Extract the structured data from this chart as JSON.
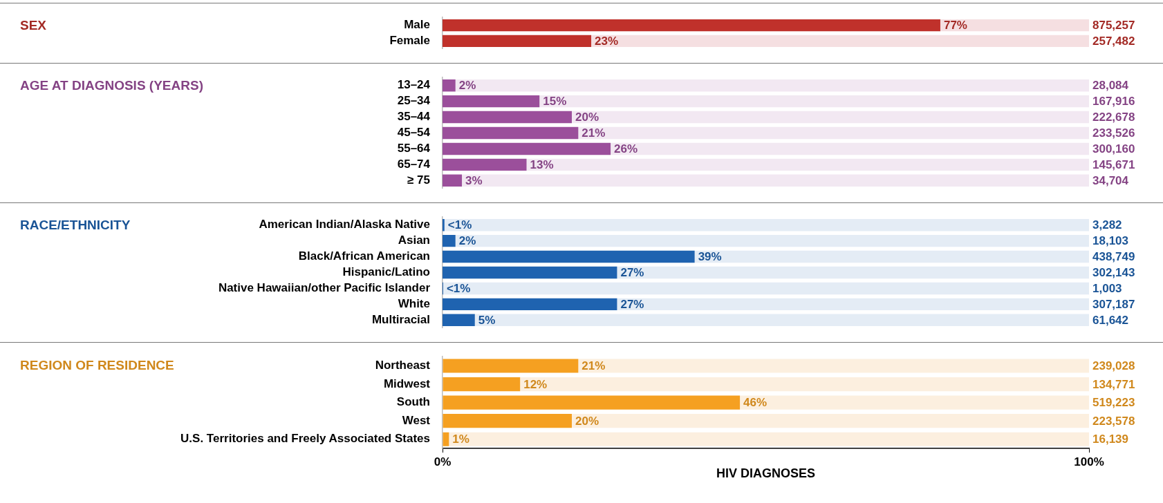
{
  "chart_data": [
    {
      "type": "bar",
      "orientation": "horizontal",
      "stacked": true,
      "ylabel": "SEX",
      "categories": [
        "Male",
        "Female"
      ],
      "xlim": [
        0,
        100
      ],
      "tick_labels": "y",
      "series": [
        {
          "color": "#c0312b",
          "values": [
            77,
            23
          ],
          "value_labels": [
            "77%",
            "23%"
          ]
        },
        {
          "color": "#f5dfe1",
          "values": [
            23,
            77
          ]
        }
      ],
      "annotations": [
        "875,257",
        "257,482"
      ]
    },
    {
      "type": "bar",
      "orientation": "horizontal",
      "stacked": true,
      "ylabel": "AGE AT DIAGNOSIS (YEARS)",
      "categories": [
        "13–24",
        "25–34",
        "35–44",
        "45–54",
        "55–64",
        "65–74",
        "≥ 75"
      ],
      "xlim": [
        0,
        100
      ],
      "tick_labels": "y",
      "series": [
        {
          "color": "#9b4f9b",
          "values": [
            2,
            15,
            20,
            21,
            26,
            13,
            3
          ],
          "value_labels": [
            "2%",
            "15%",
            "20%",
            "21%",
            "26%",
            "13%",
            "3%"
          ]
        },
        {
          "color": "#f2e8f2",
          "values": [
            98,
            85,
            80,
            79,
            74,
            87,
            97
          ]
        }
      ],
      "annotations": [
        "28,084",
        "167,916",
        "222,678",
        "233,526",
        "300,160",
        "145,671",
        "34,704"
      ]
    },
    {
      "type": "bar",
      "orientation": "horizontal",
      "stacked": true,
      "ylabel": "RACE/ETHNICITY",
      "categories": [
        "American Indian/Alaska Native",
        "Asian",
        "Black/African American",
        "Hispanic/Latino",
        "Native Hawaiian/other Pacific Islander",
        "White",
        "Multiracial"
      ],
      "xlim": [
        0,
        100
      ],
      "tick_labels": "y",
      "series": [
        {
          "color": "#1f63b0",
          "values": [
            0.3,
            2,
            39,
            27,
            0.1,
            27,
            5
          ],
          "value_labels": [
            "<1%",
            "2%",
            "39%",
            "27%",
            "<1%",
            "27%",
            "5%"
          ]
        },
        {
          "color": "#e4ecf5",
          "values": [
            99.7,
            98,
            61,
            73,
            99.9,
            73,
            95
          ]
        }
      ],
      "annotations": [
        "3,282",
        "18,103",
        "438,749",
        "302,143",
        "1,003",
        "307,187",
        "61,642"
      ]
    },
    {
      "type": "bar",
      "orientation": "horizontal",
      "stacked": true,
      "ylabel": "REGION OF RESIDENCE",
      "xlabel": "HIV DIAGNOSES",
      "categories": [
        "Northeast",
        "Midwest",
        "South",
        "West",
        "U.S. Territories and Freely Associated States"
      ],
      "xlim": [
        0,
        100
      ],
      "xticks": [
        {
          "value": 0,
          "label": "0%"
        },
        {
          "value": 100,
          "label": "100%"
        }
      ],
      "series": [
        {
          "color": "#f5a021",
          "values": [
            21,
            12,
            46,
            20,
            1
          ],
          "value_labels": [
            "21%",
            "12%",
            "46%",
            "20%",
            "1%"
          ]
        },
        {
          "color": "#fcefdf",
          "values": [
            79,
            88,
            54,
            80,
            99
          ]
        }
      ],
      "annotations": [
        "239,028",
        "134,771",
        "519,223",
        "223,578",
        "16,139"
      ]
    }
  ]
}
